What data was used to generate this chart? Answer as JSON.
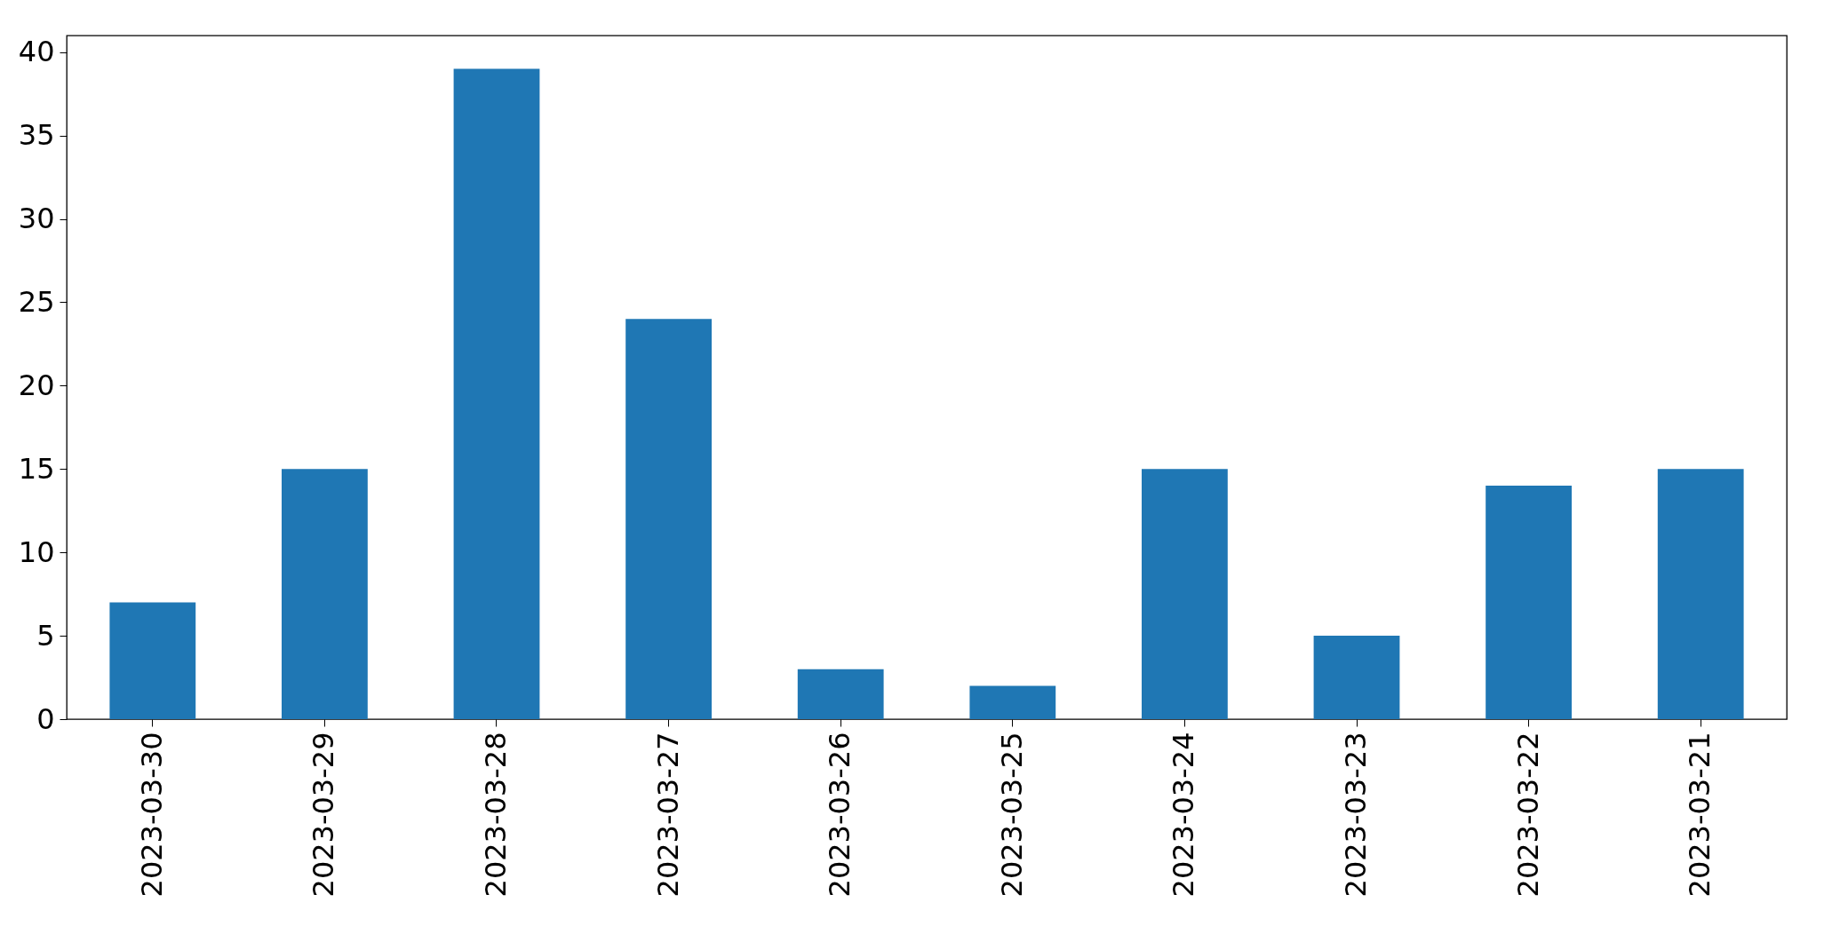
{
  "chart_data": {
    "type": "bar",
    "categories": [
      "2023-03-30",
      "2023-03-29",
      "2023-03-28",
      "2023-03-27",
      "2023-03-26",
      "2023-03-25",
      "2023-03-24",
      "2023-03-23",
      "2023-03-22",
      "2023-03-21"
    ],
    "values": [
      7,
      15,
      39,
      24,
      3,
      2,
      15,
      5,
      14,
      15
    ],
    "color": "#1f77b4",
    "ylim": [
      0,
      41
    ],
    "yticks": [
      0,
      5,
      10,
      15,
      20,
      25,
      30,
      35,
      40
    ],
    "grid": false
  }
}
